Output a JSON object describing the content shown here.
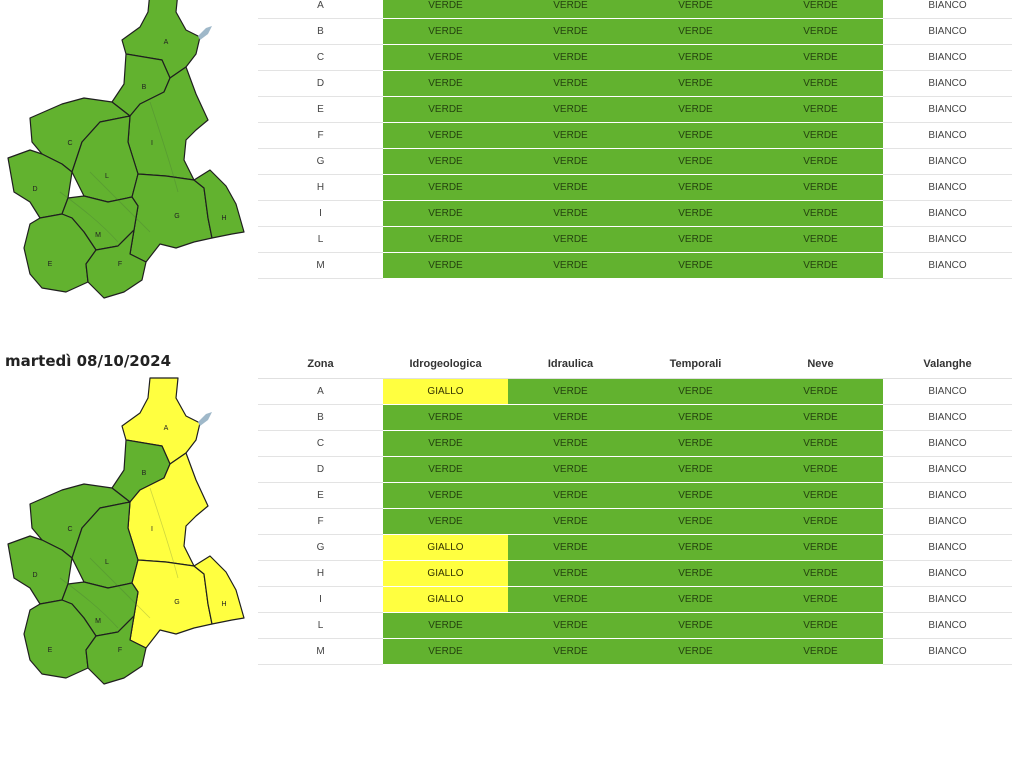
{
  "colors": {
    "verde": "#62b22f",
    "giallo": "#ffff40",
    "bianco": "#ffffff",
    "map_border": "#1f1f1f",
    "river": "#9fb8c9"
  },
  "columns": [
    "Zona",
    "Idrogeologica",
    "Idraulica",
    "Temporali",
    "Neve",
    "Valanghe"
  ],
  "days": [
    {
      "title": "",
      "rows": [
        {
          "zona": "A",
          "idro": "VERDE",
          "idra": "VERDE",
          "temp": "VERDE",
          "neve": "VERDE",
          "val": "BIANCO"
        },
        {
          "zona": "B",
          "idro": "VERDE",
          "idra": "VERDE",
          "temp": "VERDE",
          "neve": "VERDE",
          "val": "BIANCO"
        },
        {
          "zona": "C",
          "idro": "VERDE",
          "idra": "VERDE",
          "temp": "VERDE",
          "neve": "VERDE",
          "val": "BIANCO"
        },
        {
          "zona": "D",
          "idro": "VERDE",
          "idra": "VERDE",
          "temp": "VERDE",
          "neve": "VERDE",
          "val": "BIANCO"
        },
        {
          "zona": "E",
          "idro": "VERDE",
          "idra": "VERDE",
          "temp": "VERDE",
          "neve": "VERDE",
          "val": "BIANCO"
        },
        {
          "zona": "F",
          "idro": "VERDE",
          "idra": "VERDE",
          "temp": "VERDE",
          "neve": "VERDE",
          "val": "BIANCO"
        },
        {
          "zona": "G",
          "idro": "VERDE",
          "idra": "VERDE",
          "temp": "VERDE",
          "neve": "VERDE",
          "val": "BIANCO"
        },
        {
          "zona": "H",
          "idro": "VERDE",
          "idra": "VERDE",
          "temp": "VERDE",
          "neve": "VERDE",
          "val": "BIANCO"
        },
        {
          "zona": "I",
          "idro": "VERDE",
          "idra": "VERDE",
          "temp": "VERDE",
          "neve": "VERDE",
          "val": "BIANCO"
        },
        {
          "zona": "L",
          "idro": "VERDE",
          "idra": "VERDE",
          "temp": "VERDE",
          "neve": "VERDE",
          "val": "BIANCO"
        },
        {
          "zona": "M",
          "idro": "VERDE",
          "idra": "VERDE",
          "temp": "VERDE",
          "neve": "VERDE",
          "val": "BIANCO"
        }
      ]
    },
    {
      "title": "martedì 08/10/2024",
      "rows": [
        {
          "zona": "A",
          "idro": "GIALLO",
          "idra": "VERDE",
          "temp": "VERDE",
          "neve": "VERDE",
          "val": "BIANCO"
        },
        {
          "zona": "B",
          "idro": "VERDE",
          "idra": "VERDE",
          "temp": "VERDE",
          "neve": "VERDE",
          "val": "BIANCO"
        },
        {
          "zona": "C",
          "idro": "VERDE",
          "idra": "VERDE",
          "temp": "VERDE",
          "neve": "VERDE",
          "val": "BIANCO"
        },
        {
          "zona": "D",
          "idro": "VERDE",
          "idra": "VERDE",
          "temp": "VERDE",
          "neve": "VERDE",
          "val": "BIANCO"
        },
        {
          "zona": "E",
          "idro": "VERDE",
          "idra": "VERDE",
          "temp": "VERDE",
          "neve": "VERDE",
          "val": "BIANCO"
        },
        {
          "zona": "F",
          "idro": "VERDE",
          "idra": "VERDE",
          "temp": "VERDE",
          "neve": "VERDE",
          "val": "BIANCO"
        },
        {
          "zona": "G",
          "idro": "GIALLO",
          "idra": "VERDE",
          "temp": "VERDE",
          "neve": "VERDE",
          "val": "BIANCO"
        },
        {
          "zona": "H",
          "idro": "GIALLO",
          "idra": "VERDE",
          "temp": "VERDE",
          "neve": "VERDE",
          "val": "BIANCO"
        },
        {
          "zona": "I",
          "idro": "GIALLO",
          "idra": "VERDE",
          "temp": "VERDE",
          "neve": "VERDE",
          "val": "BIANCO"
        },
        {
          "zona": "L",
          "idro": "VERDE",
          "idra": "VERDE",
          "temp": "VERDE",
          "neve": "VERDE",
          "val": "BIANCO"
        },
        {
          "zona": "M",
          "idro": "VERDE",
          "idra": "VERDE",
          "temp": "VERDE",
          "neve": "VERDE",
          "val": "BIANCO"
        }
      ]
    }
  ]
}
